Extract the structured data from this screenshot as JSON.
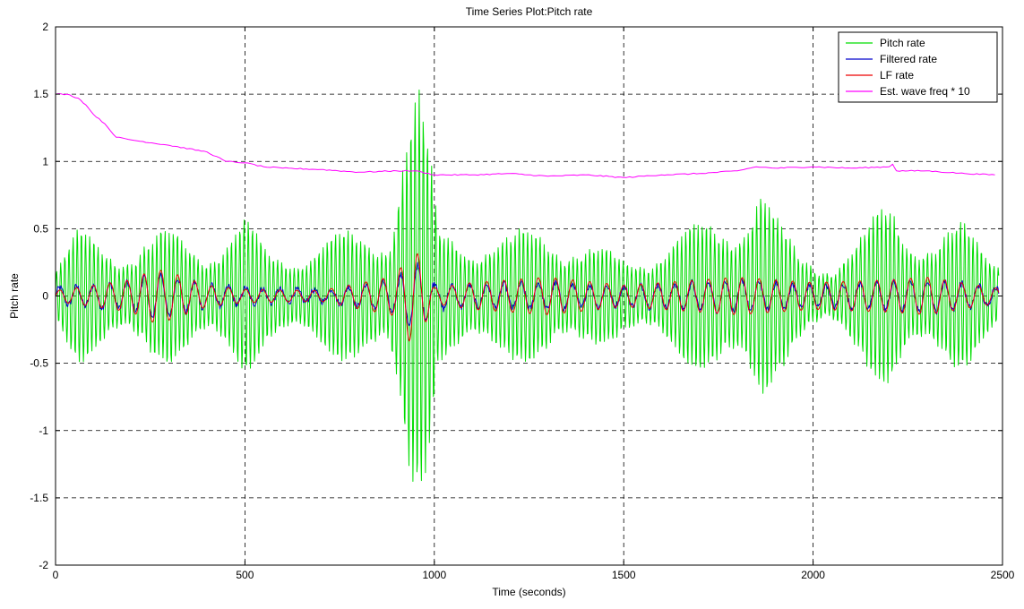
{
  "chart_data": {
    "type": "line",
    "title": "Time Series Plot:Pitch rate",
    "xlabel": "Time (seconds)",
    "ylabel": "Pitch rate",
    "xlim": [
      0,
      2500
    ],
    "ylim": [
      -2,
      2
    ],
    "xticks": [
      0,
      500,
      1000,
      1500,
      2000,
      2500
    ],
    "yticks": [
      -2,
      -1.5,
      -1,
      -0.5,
      0,
      0.5,
      1,
      1.5,
      2
    ],
    "xtick_labels": [
      "0",
      "500",
      "1000",
      "1500",
      "2000",
      "2500"
    ],
    "ytick_labels": [
      "-2",
      "-1.5",
      "-1",
      "-0.5",
      "0",
      "0.5",
      "1",
      "1.5",
      "2"
    ],
    "grid": true,
    "legend_position": "top-right",
    "series": [
      {
        "name": "Pitch rate",
        "color": "#00dd00",
        "amplitude_envelope": {
          "t": [
            0,
            60,
            100,
            200,
            300,
            400,
            500,
            560,
            700,
            800,
            880,
            920,
            940,
            960,
            990,
            1010,
            1060,
            1200,
            1300,
            1400,
            1500,
            1600,
            1700,
            1760,
            1820,
            1860,
            1900,
            1960,
            2050,
            2130,
            2180,
            2210,
            2250,
            2320,
            2400,
            2480
          ],
          "amplitude": [
            0.22,
            0.5,
            0.48,
            0.42,
            0.5,
            0.45,
            0.6,
            0.35,
            0.45,
            0.5,
            0.62,
            1.45,
            1.65,
            1.6,
            1.05,
            0.5,
            0.55,
            0.45,
            0.6,
            0.4,
            0.3,
            0.45,
            0.55,
            0.65,
            0.82,
            0.98,
            0.6,
            0.35,
            0.3,
            0.45,
            0.7,
            0.82,
            0.65,
            0.45,
            0.55,
            0.4
          ]
        },
        "period_seconds": 11
      },
      {
        "name": "Filtered rate",
        "color": "#0000cc",
        "amplitude_envelope": {
          "t": [
            0,
            200,
            260,
            300,
            400,
            500,
            700,
            900,
            940,
            960,
            1000,
            1100,
            1300,
            1500,
            1800,
            2000,
            2200,
            2300,
            2480
          ],
          "amplitude": [
            0.06,
            0.1,
            0.17,
            0.15,
            0.08,
            0.06,
            0.04,
            0.12,
            0.25,
            0.22,
            0.1,
            0.08,
            0.1,
            0.07,
            0.12,
            0.08,
            0.1,
            0.12,
            0.07
          ]
        },
        "period_seconds": 45
      },
      {
        "name": "LF rate",
        "color": "#ee0000",
        "amplitude_envelope": {
          "t": [
            0,
            200,
            260,
            300,
            400,
            500,
            700,
            900,
            940,
            960,
            1000,
            1100,
            1300,
            1500,
            1800,
            2000,
            2200,
            2300,
            2480
          ],
          "amplitude": [
            0.04,
            0.12,
            0.2,
            0.18,
            0.08,
            0.05,
            0.04,
            0.15,
            0.37,
            0.3,
            0.06,
            0.1,
            0.14,
            0.08,
            0.14,
            0.1,
            0.12,
            0.14,
            0.06
          ]
        },
        "period_seconds": 45
      },
      {
        "name": "Est. wave freq * 10",
        "color": "#ff00ff",
        "x": [
          0,
          30,
          60,
          80,
          100,
          130,
          160,
          200,
          300,
          400,
          450,
          500,
          550,
          600,
          700,
          800,
          900,
          950,
          1000,
          1100,
          1200,
          1300,
          1400,
          1500,
          1600,
          1700,
          1800,
          1850,
          1900,
          2000,
          2100,
          2200,
          2210,
          2220,
          2300,
          2400,
          2480
        ],
        "y": [
          1.5,
          1.5,
          1.47,
          1.42,
          1.35,
          1.28,
          1.18,
          1.16,
          1.12,
          1.07,
          1.0,
          0.99,
          0.96,
          0.95,
          0.94,
          0.92,
          0.93,
          0.93,
          0.9,
          0.9,
          0.91,
          0.89,
          0.9,
          0.88,
          0.9,
          0.91,
          0.93,
          0.96,
          0.95,
          0.96,
          0.95,
          0.96,
          0.98,
          0.93,
          0.93,
          0.91,
          0.9
        ]
      }
    ]
  }
}
